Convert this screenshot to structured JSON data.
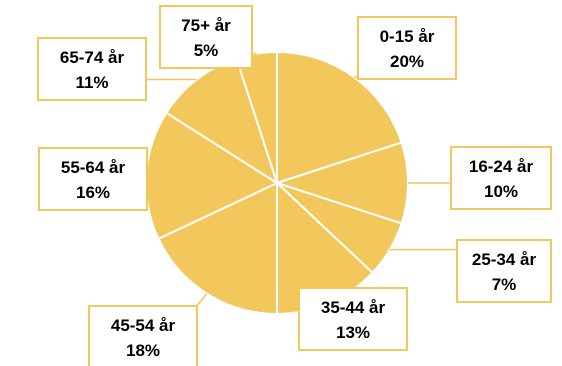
{
  "chart_data": {
    "type": "pie",
    "title": "",
    "start_angle_deg": 0,
    "direction": "clockwise",
    "slice_color": "#F2C75C",
    "edge_color": "#ffffff",
    "label_border_color": "#F2C75C",
    "leader_color": "#F2C75C",
    "categories": [
      "0-15 år",
      "16-24 år",
      "25-34 år",
      "35-44 år",
      "45-54 år",
      "55-64 år",
      "65-74 år",
      "75+ år"
    ],
    "values": [
      20,
      10,
      7,
      13,
      18,
      16,
      11,
      5
    ],
    "value_labels": [
      "20%",
      "10%",
      "7%",
      "13%",
      "18%",
      "16%",
      "11%",
      "5%"
    ]
  }
}
